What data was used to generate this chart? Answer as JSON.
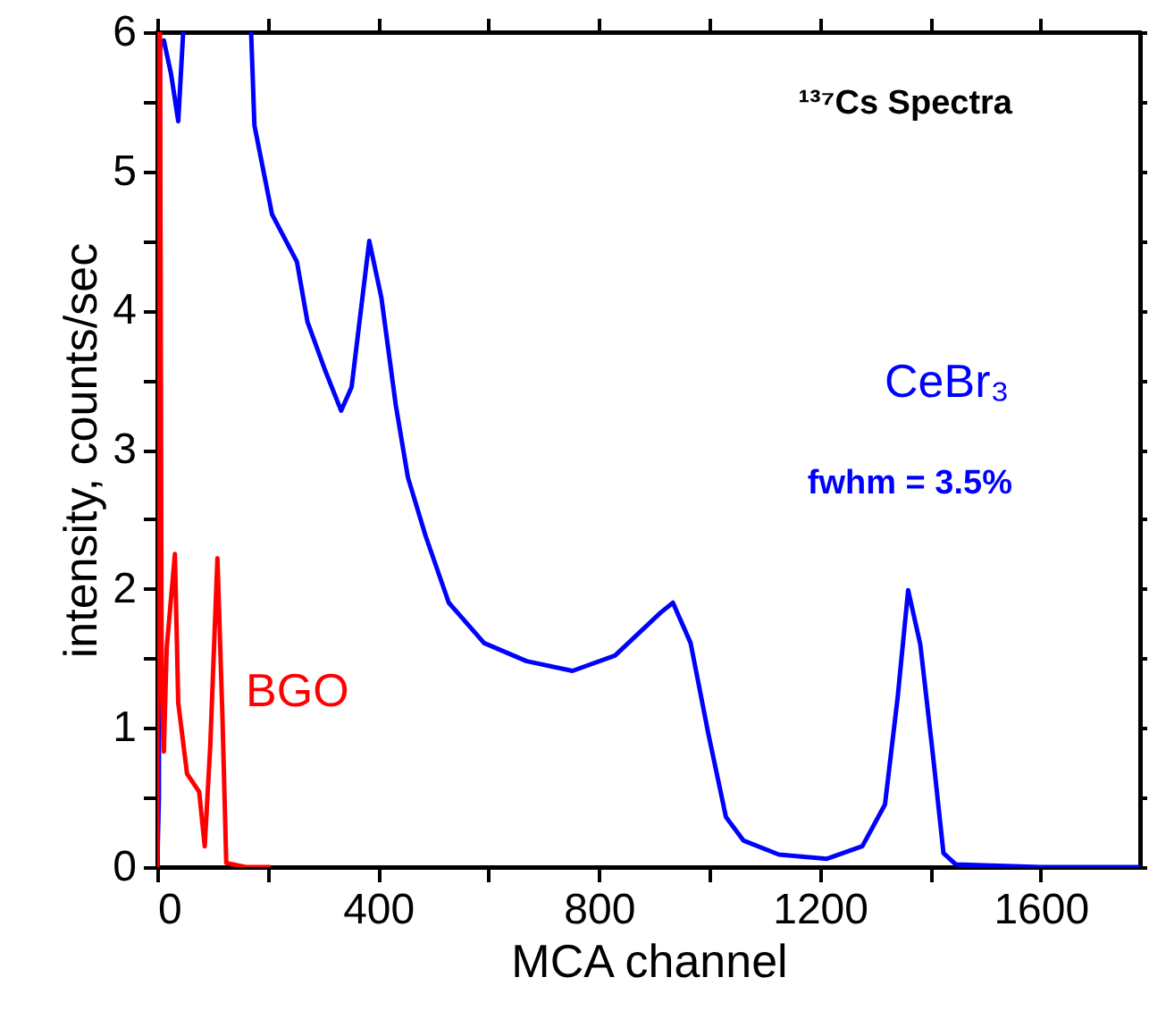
{
  "chart_data": {
    "type": "line",
    "xlabel": "MCA channel",
    "ylabel": "intensity, counts/sec",
    "annotations": [
      "¹³⁷Cs Spectra",
      "fwhm = 3.5%"
    ],
    "xlim": [
      0,
      1780
    ],
    "xticks": [
      0,
      {
        "value": 200,
        "label": null
      },
      400,
      {
        "value": 600,
        "label": null
      },
      800,
      {
        "value": 1000,
        "label": null
      },
      1200,
      {
        "value": 1400,
        "label": null
      },
      1600
    ],
    "ylim": [
      0,
      6
    ],
    "yticks": [
      0,
      {
        "value": 0.5,
        "label": null
      },
      1,
      {
        "value": 1.5,
        "label": null
      },
      2,
      {
        "value": 2.5,
        "label": null
      },
      3,
      {
        "value": 3.5,
        "label": null
      },
      4,
      {
        "value": 4.5,
        "label": null
      },
      5,
      {
        "value": 5.5,
        "label": null
      },
      6
    ],
    "grid": false,
    "marker": "none",
    "line_style": "solid",
    "series": [
      {
        "name": "CeBr₃",
        "color": "#0000ff",
        "x": [
          0,
          3,
          5,
          12,
          25,
          38,
          47,
          100,
          170,
          176,
          208,
          253,
          272,
          304,
          333,
          352,
          384,
          406,
          432,
          454,
          486,
          528,
          592,
          669,
          752,
          829,
          912,
          934,
          966,
          998,
          1030,
          1062,
          1126,
          1213,
          1277,
          1318,
          1341,
          1360,
          1382,
          1405,
          1424,
          1446,
          1600,
          1780
        ],
        "values": [
          0,
          0.5,
          5.9,
          5.94,
          5.7,
          5.36,
          6,
          null,
          6,
          5.33,
          4.69,
          4.35,
          3.92,
          3.57,
          3.28,
          3.45,
          4.5,
          4.09,
          3.32,
          2.8,
          2.38,
          1.9,
          1.61,
          1.48,
          1.41,
          1.52,
          1.83,
          1.9,
          1.61,
          0.96,
          0.36,
          0.19,
          0.09,
          0.06,
          0.15,
          0.45,
          1.22,
          1.99,
          1.6,
          0.8,
          0.1,
          0.02,
          0,
          0
        ]
      },
      {
        "name": "BGO",
        "color": "#ff0000",
        "x": [
          0,
          1,
          3,
          5,
          8,
          12,
          17,
          32,
          38,
          54,
          76,
          86,
          96,
          109,
          118,
          125,
          160,
          205
        ],
        "values": [
          0,
          6,
          null,
          6,
          1.3,
          0.83,
          1.57,
          2.25,
          1.18,
          0.67,
          0.54,
          0.15,
          0.87,
          2.22,
          1.09,
          0.03,
          0,
          0
        ]
      }
    ]
  }
}
